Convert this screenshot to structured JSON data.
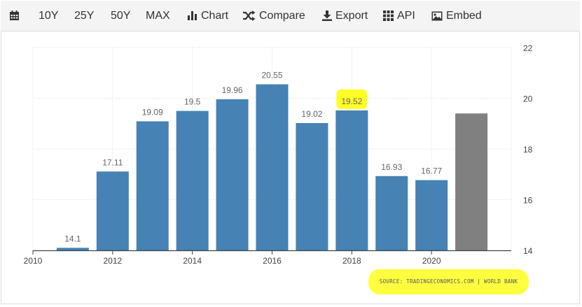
{
  "toolbar": {
    "calendar_icon": "calendar-icon",
    "period_buttons": [
      "10Y",
      "25Y",
      "50Y",
      "MAX"
    ],
    "chart_label": "Chart",
    "compare_label": "Compare",
    "export_label": "Export",
    "api_label": "API",
    "embed_label": "Embed"
  },
  "source": {
    "text": "SOURCE: TRADINGECONOMICS.COM | WORLD BANK"
  },
  "colors": {
    "bar": "#4682b4",
    "forecast_bar": "#808080",
    "highlight": "#ffff00"
  },
  "chart_data": {
    "type": "bar",
    "x": [
      2011,
      2012,
      2013,
      2014,
      2015,
      2016,
      2017,
      2018,
      2019,
      2020,
      2021
    ],
    "values": [
      14.1,
      17.11,
      19.09,
      19.5,
      19.96,
      20.55,
      19.02,
      19.52,
      16.93,
      16.77,
      19.4
    ],
    "data_labels": [
      "14.1",
      "17.11",
      "19.09",
      "19.5",
      "19.96",
      "20.55",
      "19.02",
      "19.52",
      "16.93",
      "16.77",
      ""
    ],
    "highlighted_index": 7,
    "forecast_index": 10,
    "x_ticks": [
      "2010",
      "2012",
      "2014",
      "2016",
      "2018",
      "2020"
    ],
    "y_ticks": [
      "14",
      "16",
      "18",
      "20",
      "22"
    ],
    "ylim": [
      14,
      22
    ],
    "xlim": [
      2010,
      2022
    ],
    "y_axis_side": "right",
    "grid": true
  }
}
